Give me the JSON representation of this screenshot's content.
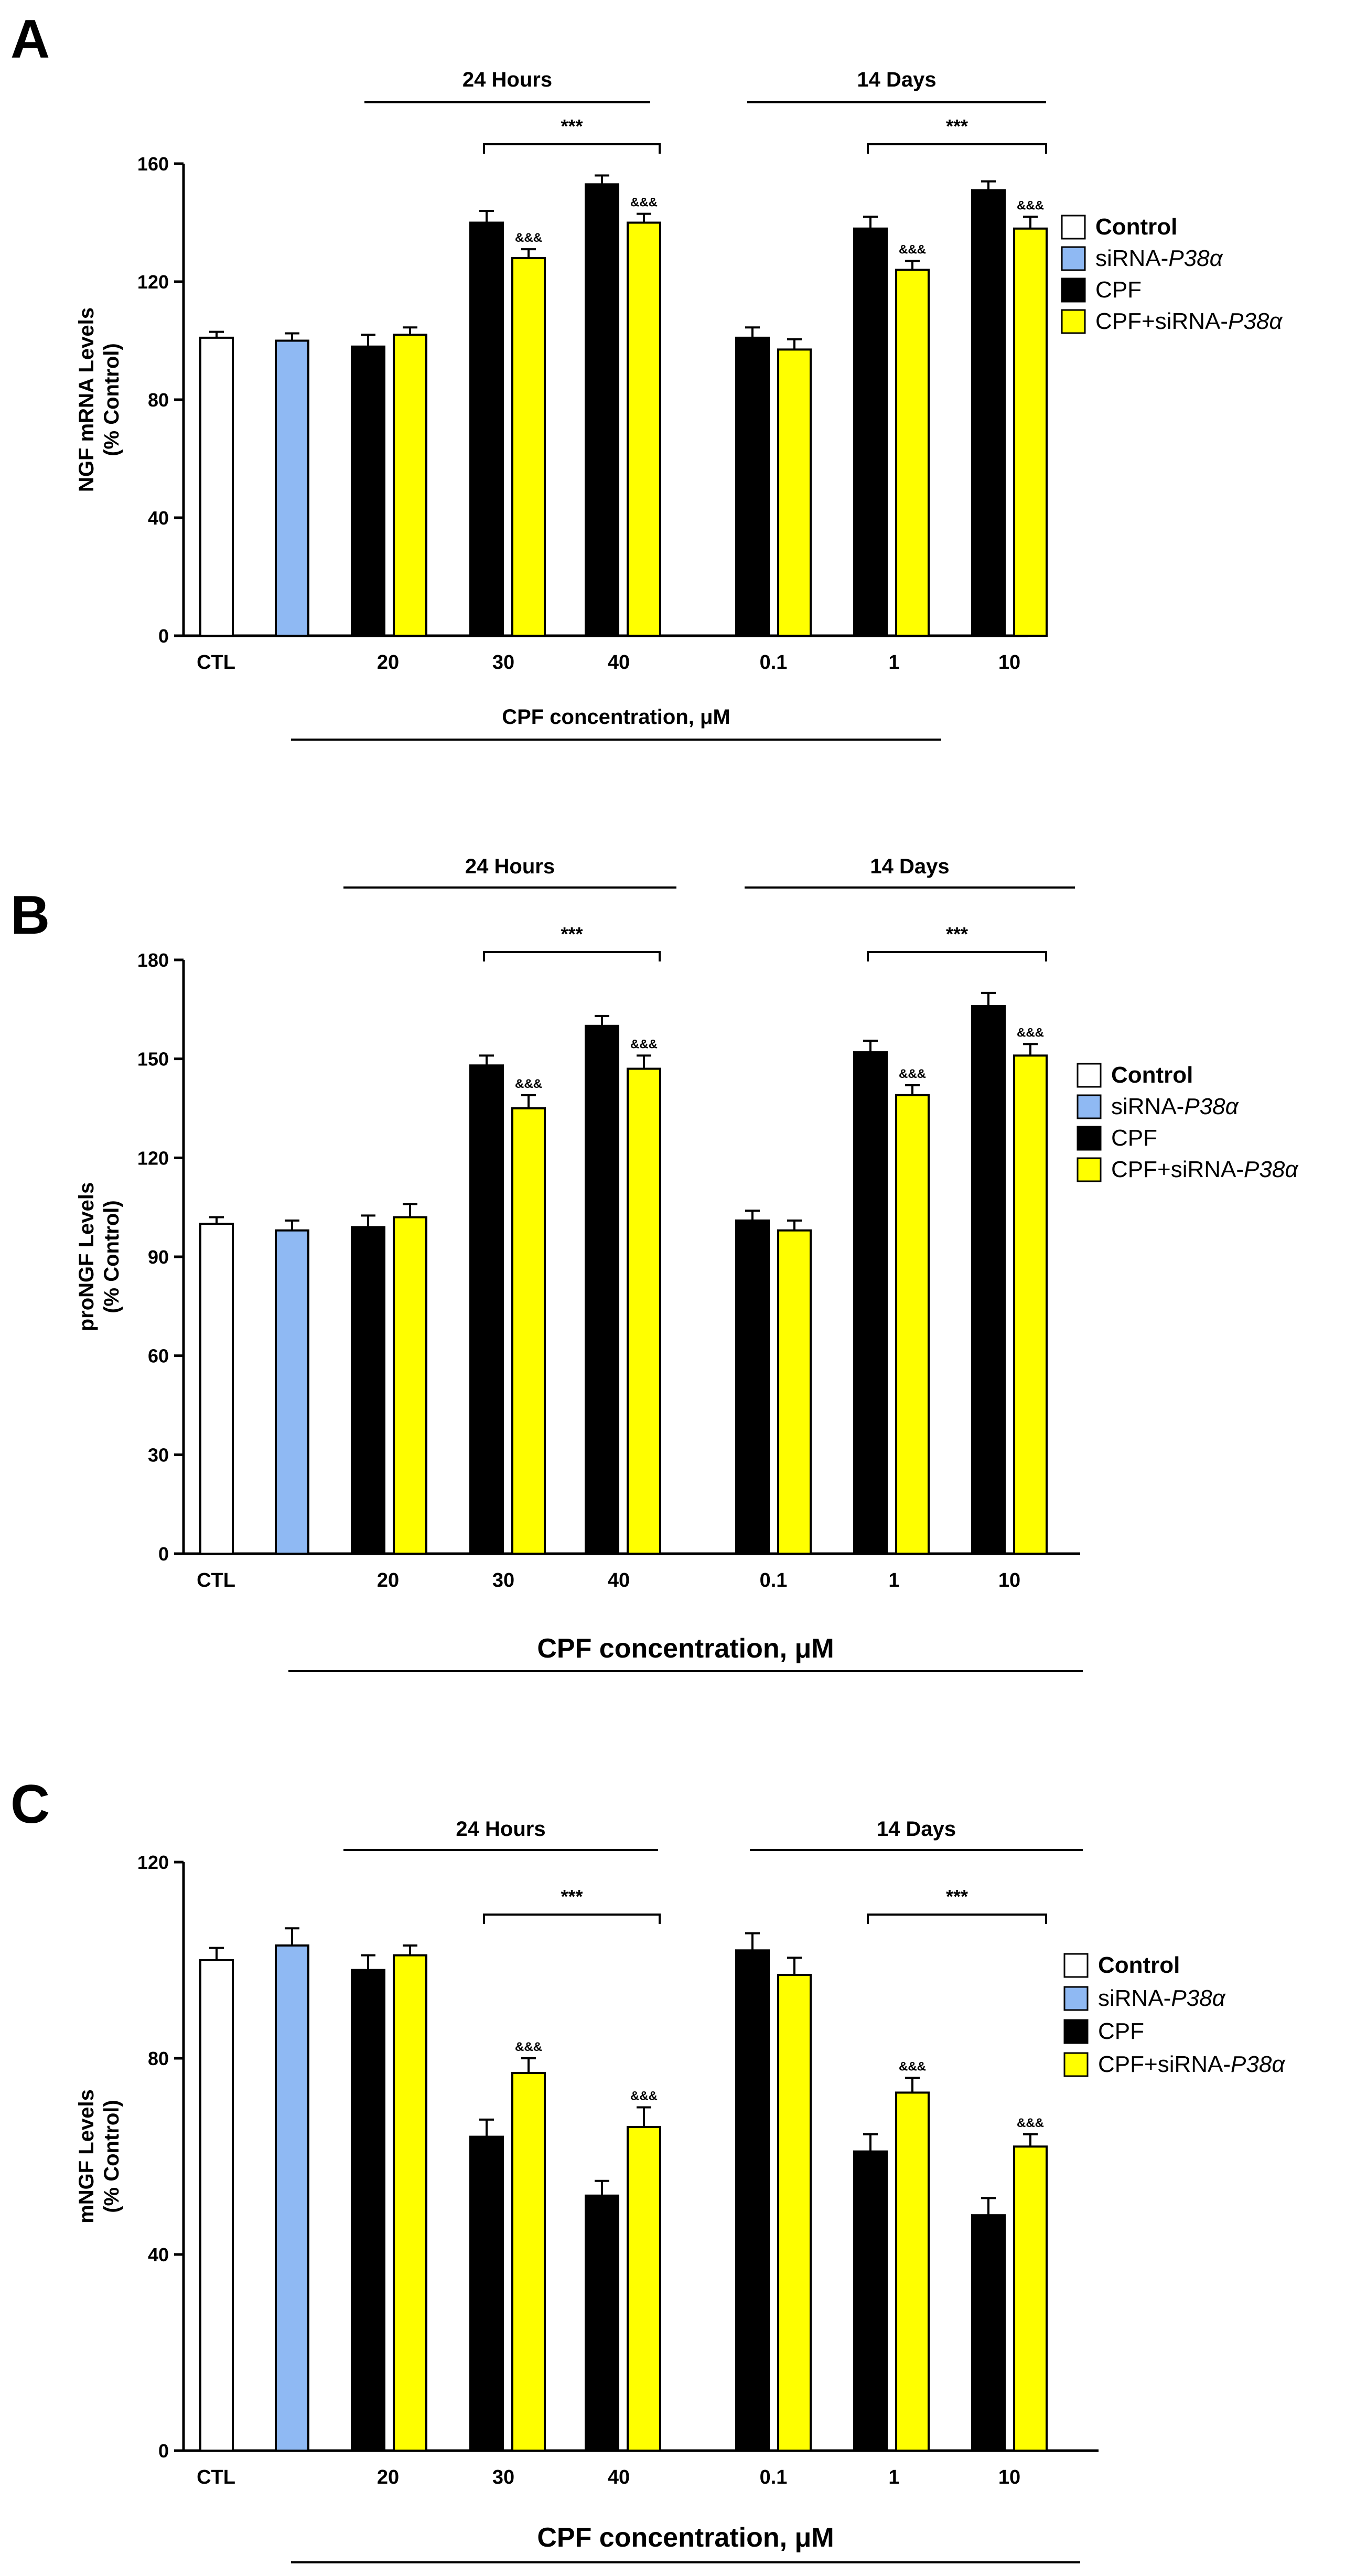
{
  "chart_data": [
    {
      "panel_label": "A",
      "type": "bar",
      "ylabel_lines": [
        "NGF mRNA Levels",
        "(% Control)"
      ],
      "ylim": [
        0,
        160
      ],
      "yticks": [
        0,
        40,
        80,
        120,
        160
      ],
      "xlabel_main": "CPF concentration,",
      "xlabel_unit": "μM",
      "group_titles": [
        "24 Hours",
        "14 Days"
      ],
      "group_tick_labels": [
        "CTL",
        "20",
        "30",
        "40",
        "0.1",
        "1",
        "10"
      ],
      "controls": [
        {
          "series": "Control",
          "value": 101,
          "error": 2
        },
        {
          "series": "siRNA-P38α",
          "value": 100,
          "error": 2.5
        }
      ],
      "categories": [
        "20",
        "30",
        "40",
        "0.1",
        "1",
        "10"
      ],
      "series": [
        {
          "name": "CPF",
          "values": [
            98,
            140,
            153,
            101,
            138,
            151
          ],
          "errors": [
            4,
            4,
            3,
            3.5,
            4,
            3
          ]
        },
        {
          "name": "CPF+siRNA-P38α",
          "values": [
            102,
            128,
            140,
            97,
            124,
            138
          ],
          "errors": [
            2.5,
            3,
            3,
            3.5,
            3,
            4
          ]
        }
      ],
      "significance": [
        {
          "label": "***",
          "span": [
            "30",
            "40"
          ],
          "timepoint": "24 Hours"
        },
        {
          "label": "***",
          "span": [
            "1",
            "10"
          ],
          "timepoint": "14 Days"
        }
      ],
      "bar_markers": [
        {
          "category": "30",
          "label": "&&&"
        },
        {
          "category": "40",
          "label": "&&&"
        },
        {
          "category": "1",
          "label": "&&&"
        },
        {
          "category": "10",
          "label": "&&&"
        }
      ],
      "legend": {
        "placement": "right",
        "items": [
          {
            "label": "Control",
            "italic_suffix": ""
          },
          {
            "label": "siRNA-",
            "italic_suffix": "P38α"
          },
          {
            "label": "CPF",
            "italic_suffix": ""
          },
          {
            "label": "CPF+siRNA-",
            "italic_suffix": "P38α"
          }
        ]
      }
    },
    {
      "panel_label": "B",
      "type": "bar",
      "ylabel_lines": [
        "proNGF Levels",
        "(% Control)"
      ],
      "ylim": [
        0,
        180
      ],
      "yticks": [
        0,
        30,
        60,
        90,
        120,
        150,
        180
      ],
      "xlabel_main": "CPF concentration,",
      "xlabel_unit": "μM",
      "group_titles": [
        "24 Hours",
        "14 Days"
      ],
      "group_tick_labels": [
        "CTL",
        "20",
        "30",
        "40",
        "0.1",
        "1",
        "10"
      ],
      "controls": [
        {
          "series": "Control",
          "value": 100,
          "error": 2
        },
        {
          "series": "siRNA-P38α",
          "value": 98,
          "error": 3
        }
      ],
      "categories": [
        "20",
        "30",
        "40",
        "0.1",
        "1",
        "10"
      ],
      "series": [
        {
          "name": "CPF",
          "values": [
            99,
            148,
            160,
            101,
            152,
            166
          ],
          "errors": [
            3.5,
            3,
            3,
            3,
            3.5,
            4
          ]
        },
        {
          "name": "CPF+siRNA-P38α",
          "values": [
            102,
            135,
            147,
            98,
            139,
            151
          ],
          "errors": [
            4,
            4,
            4,
            3,
            3,
            3.5
          ]
        }
      ],
      "significance": [
        {
          "label": "***",
          "span": [
            "30",
            "40"
          ],
          "timepoint": "24 Hours"
        },
        {
          "label": "***",
          "span": [
            "1",
            "10"
          ],
          "timepoint": "14 Days"
        }
      ],
      "bar_markers": [
        {
          "category": "30",
          "label": "&&&"
        },
        {
          "category": "40",
          "label": "&&&"
        },
        {
          "category": "1",
          "label": "&&&"
        },
        {
          "category": "10",
          "label": "&&&"
        }
      ],
      "legend": {
        "placement": "right",
        "items": [
          {
            "label": "Control",
            "italic_suffix": ""
          },
          {
            "label": "siRNA-",
            "italic_suffix": "P38α"
          },
          {
            "label": "CPF",
            "italic_suffix": ""
          },
          {
            "label": "CPF+siRNA-",
            "italic_suffix": "P38α"
          }
        ]
      }
    },
    {
      "panel_label": "C",
      "type": "bar",
      "ylabel_lines": [
        "mNGF Levels",
        "(% Control)"
      ],
      "ylim": [
        0,
        120
      ],
      "yticks": [
        0,
        40,
        80,
        120
      ],
      "xlabel_main": "CPF concentration,",
      "xlabel_unit": "μM",
      "group_titles": [
        "24 Hours",
        "14 Days"
      ],
      "group_tick_labels": [
        "CTL",
        "20",
        "30",
        "40",
        "0.1",
        "1",
        "10"
      ],
      "controls": [
        {
          "series": "Control",
          "value": 100,
          "error": 2.5
        },
        {
          "series": "siRNA-P38α",
          "value": 103,
          "error": 3.5
        }
      ],
      "categories": [
        "20",
        "30",
        "40",
        "0.1",
        "1",
        "10"
      ],
      "series": [
        {
          "name": "CPF",
          "values": [
            98,
            64,
            52,
            102,
            61,
            48
          ],
          "errors": [
            3,
            3.5,
            3,
            3.5,
            3.5,
            3.5
          ]
        },
        {
          "name": "CPF+siRNA-P38α",
          "values": [
            101,
            77,
            66,
            97,
            73,
            62
          ],
          "errors": [
            2,
            3,
            4,
            3.5,
            3,
            2.5
          ]
        }
      ],
      "significance": [
        {
          "label": "***",
          "span": [
            "30",
            "40"
          ],
          "timepoint": "24 Hours"
        },
        {
          "label": "***",
          "span": [
            "1",
            "10"
          ],
          "timepoint": "14 Days"
        }
      ],
      "bar_markers": [
        {
          "category": "30",
          "label": "&&&"
        },
        {
          "category": "40",
          "label": "&&&"
        },
        {
          "category": "1",
          "label": "&&&"
        },
        {
          "category": "10",
          "label": "&&&"
        }
      ],
      "legend": {
        "placement": "right",
        "items": [
          {
            "label": "Control",
            "italic_suffix": ""
          },
          {
            "label": "siRNA-",
            "italic_suffix": "P38α"
          },
          {
            "label": "CPF",
            "italic_suffix": ""
          },
          {
            "label": "CPF+siRNA-",
            "italic_suffix": "P38α"
          }
        ]
      }
    }
  ],
  "colors": {
    "Control": "#ffffff",
    "siRNA-P38α": "#8fb9f3",
    "CPF": "#000000",
    "CPF+siRNA-P38α": "#ffff00",
    "axis": "#000000"
  }
}
